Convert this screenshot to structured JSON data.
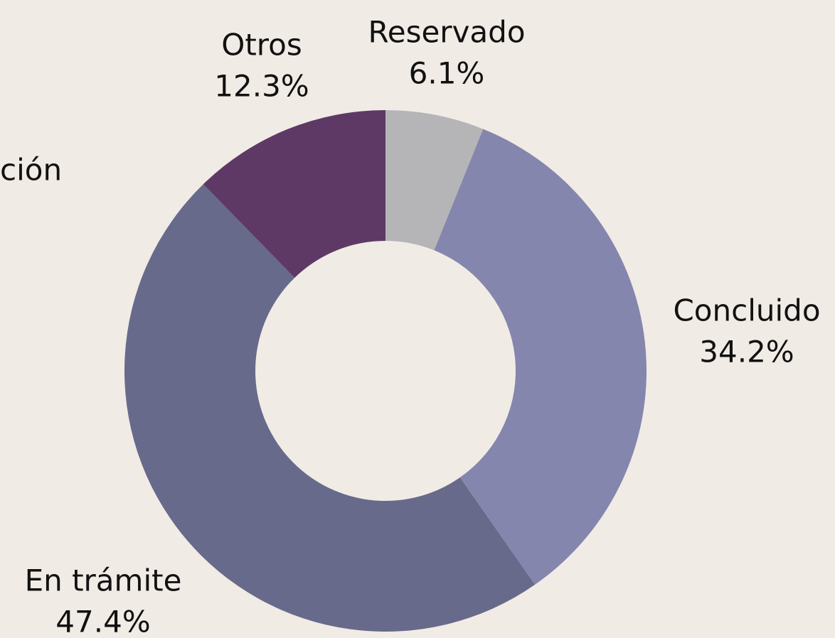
{
  "chart_data": {
    "type": "donut",
    "categories": [
      "Reservado",
      "Concluido",
      "En trámite",
      "Otros"
    ],
    "values": [
      6.1,
      34.2,
      47.4,
      12.3
    ],
    "value_labels": [
      "6.1%",
      "34.2%",
      "47.4%",
      "12.3%"
    ],
    "colors": [
      "#b5b5b7",
      "#8586ad",
      "#676a8a",
      "#5e3966"
    ],
    "annotations": [
      "ción"
    ]
  }
}
